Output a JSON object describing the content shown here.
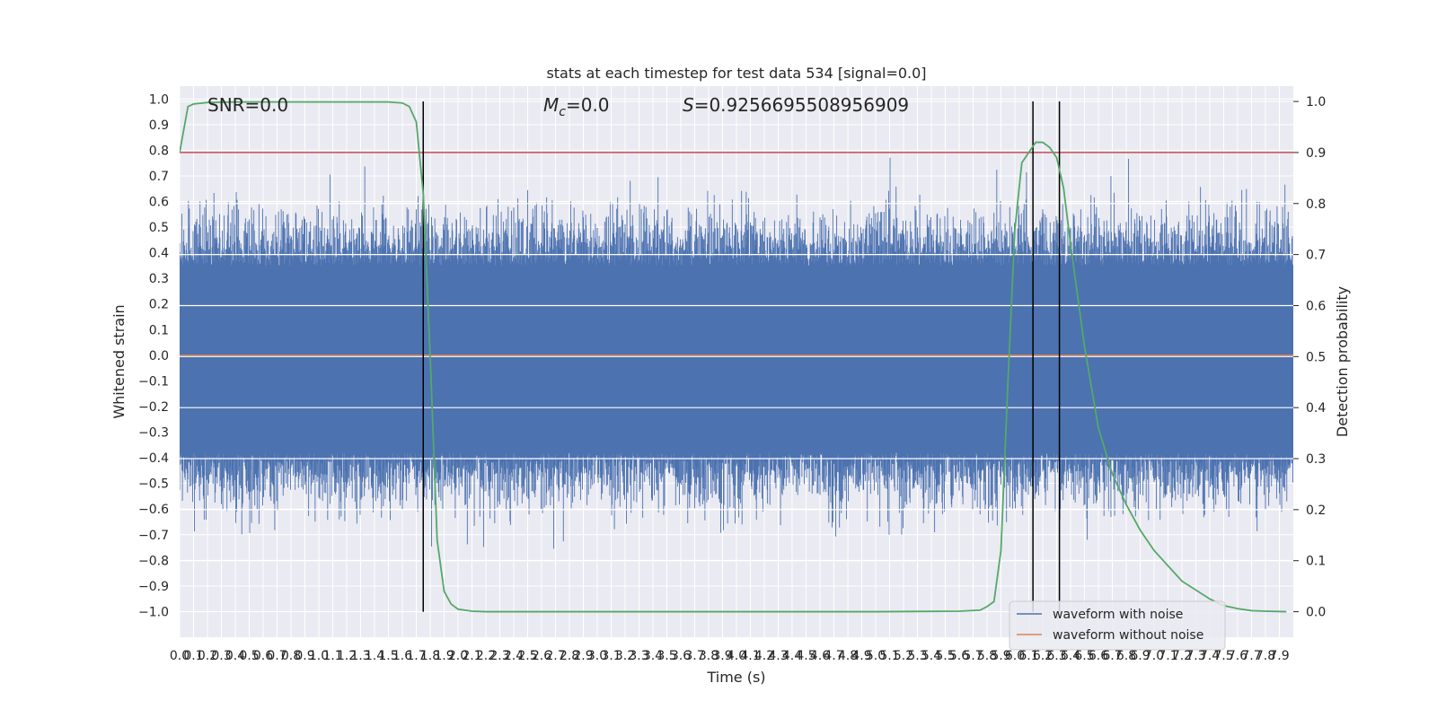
{
  "chart_data": {
    "type": "line",
    "title": "stats at each timestep for test data 534 [signal=0.0]",
    "xlabel": "Time (s)",
    "ylabel": "Whitened strain",
    "ylabel_right": "Detection probability",
    "xlim": [
      0.0,
      8.0
    ],
    "ylim": [
      -1.1,
      1.05
    ],
    "ylim_right": [
      -0.05,
      1.03
    ],
    "x_ticks": [
      0.0,
      0.1,
      0.2,
      0.3,
      0.4,
      0.5,
      0.6,
      0.7,
      0.8,
      0.9,
      1.0,
      1.1,
      1.2,
      1.3,
      1.4,
      1.5,
      1.6,
      1.7,
      1.8,
      1.9,
      2.0,
      2.1,
      2.2,
      2.3,
      2.4,
      2.5,
      2.6,
      2.7,
      2.8,
      2.9,
      3.0,
      3.1,
      3.2,
      3.3,
      3.4,
      3.5,
      3.6,
      3.7,
      3.8,
      3.9,
      4.0,
      4.1,
      4.2,
      4.3,
      4.4,
      4.5,
      4.6,
      4.7,
      4.8,
      4.9,
      5.0,
      5.1,
      5.2,
      5.3,
      5.4,
      5.5,
      5.6,
      5.7,
      5.8,
      5.9,
      6.0,
      6.1,
      6.2,
      6.3,
      6.4,
      6.5,
      6.6,
      6.7,
      6.8,
      6.9,
      7.0,
      7.1,
      7.2,
      7.3,
      7.4,
      7.5,
      7.6,
      7.7,
      7.8,
      7.9
    ],
    "y_ticks_left": [
      1.0,
      0.9,
      0.8,
      0.7,
      0.6,
      0.5,
      0.4,
      0.3,
      0.2,
      0.1,
      0.0,
      -0.1,
      -0.2,
      -0.3,
      -0.4,
      -0.5,
      -0.6,
      -0.7,
      -0.8,
      -0.9,
      -1.0
    ],
    "y_tick_labels_left": [
      "1.0",
      "0.9",
      "0.8",
      "0.7",
      "0.6",
      "0.5",
      "0.4",
      "0.3",
      "0.2",
      "0.1",
      "0.0",
      "−0.1",
      "−0.2",
      "−0.3",
      "−0.4",
      "−0.5",
      "−0.6",
      "−0.7",
      "−0.8",
      "−0.9",
      "−1.0"
    ],
    "y_ticks_right": [
      1.0,
      0.9,
      0.8,
      0.7,
      0.6,
      0.5,
      0.4,
      0.3,
      0.2,
      0.1,
      0.0
    ],
    "y_tick_labels_right": [
      "1.0",
      "0.9",
      "0.8",
      "0.7",
      "0.6",
      "0.5",
      "0.4",
      "0.3",
      "0.2",
      "0.1",
      "0.0"
    ],
    "annotations": {
      "snr": "SNR=0.0",
      "mc_symbol": "M",
      "mc_sub": "c",
      "mc_value": "=0.0",
      "s_symbol": "S",
      "s_value": "=0.9256695508956909"
    },
    "threshold_right": 0.9,
    "vertical_lines_x": [
      1.75,
      6.13,
      6.32
    ],
    "series": [
      {
        "name": "waveform with noise",
        "color": "#4c72b0",
        "axis": "left",
        "kind": "noise",
        "band_high": 0.35,
        "band_low": -0.38
      },
      {
        "name": "waveform without noise",
        "color": "#dd8452",
        "axis": "left",
        "kind": "flat",
        "value": 0.0
      },
      {
        "color": "#55a868",
        "axis": "right",
        "x": [
          0.0,
          0.06,
          0.1,
          0.2,
          0.4,
          0.8,
          1.2,
          1.5,
          1.6,
          1.65,
          1.7,
          1.75,
          1.8,
          1.85,
          1.9,
          1.95,
          2.0,
          2.1,
          2.2,
          2.5,
          3.0,
          4.0,
          5.0,
          5.6,
          5.75,
          5.8,
          5.85,
          5.9,
          5.95,
          6.0,
          6.05,
          6.1,
          6.15,
          6.2,
          6.25,
          6.3,
          6.35,
          6.4,
          6.5,
          6.6,
          6.7,
          6.8,
          6.9,
          7.0,
          7.2,
          7.4,
          7.5,
          7.6,
          7.7,
          7.8,
          7.95
        ],
        "values": [
          0.9,
          0.99,
          0.995,
          0.998,
          0.999,
          0.999,
          0.999,
          0.999,
          0.997,
          0.99,
          0.96,
          0.82,
          0.5,
          0.14,
          0.04,
          0.015,
          0.005,
          0.001,
          0.0,
          0.0,
          0.0,
          0.0,
          0.0,
          0.001,
          0.003,
          0.01,
          0.02,
          0.12,
          0.45,
          0.75,
          0.88,
          0.9,
          0.92,
          0.92,
          0.91,
          0.89,
          0.83,
          0.72,
          0.52,
          0.36,
          0.27,
          0.21,
          0.16,
          0.12,
          0.06,
          0.025,
          0.012,
          0.006,
          0.002,
          0.001,
          0.0
        ]
      }
    ],
    "legend": {
      "placement": "lower-right",
      "entries": [
        "waveform with noise",
        "waveform without noise"
      ]
    },
    "grid": true,
    "style": {
      "background": "#eaeaf2",
      "grid_color": "#ffffff",
      "threshold_color": "#c44e52",
      "vline_color": "#000000"
    }
  }
}
